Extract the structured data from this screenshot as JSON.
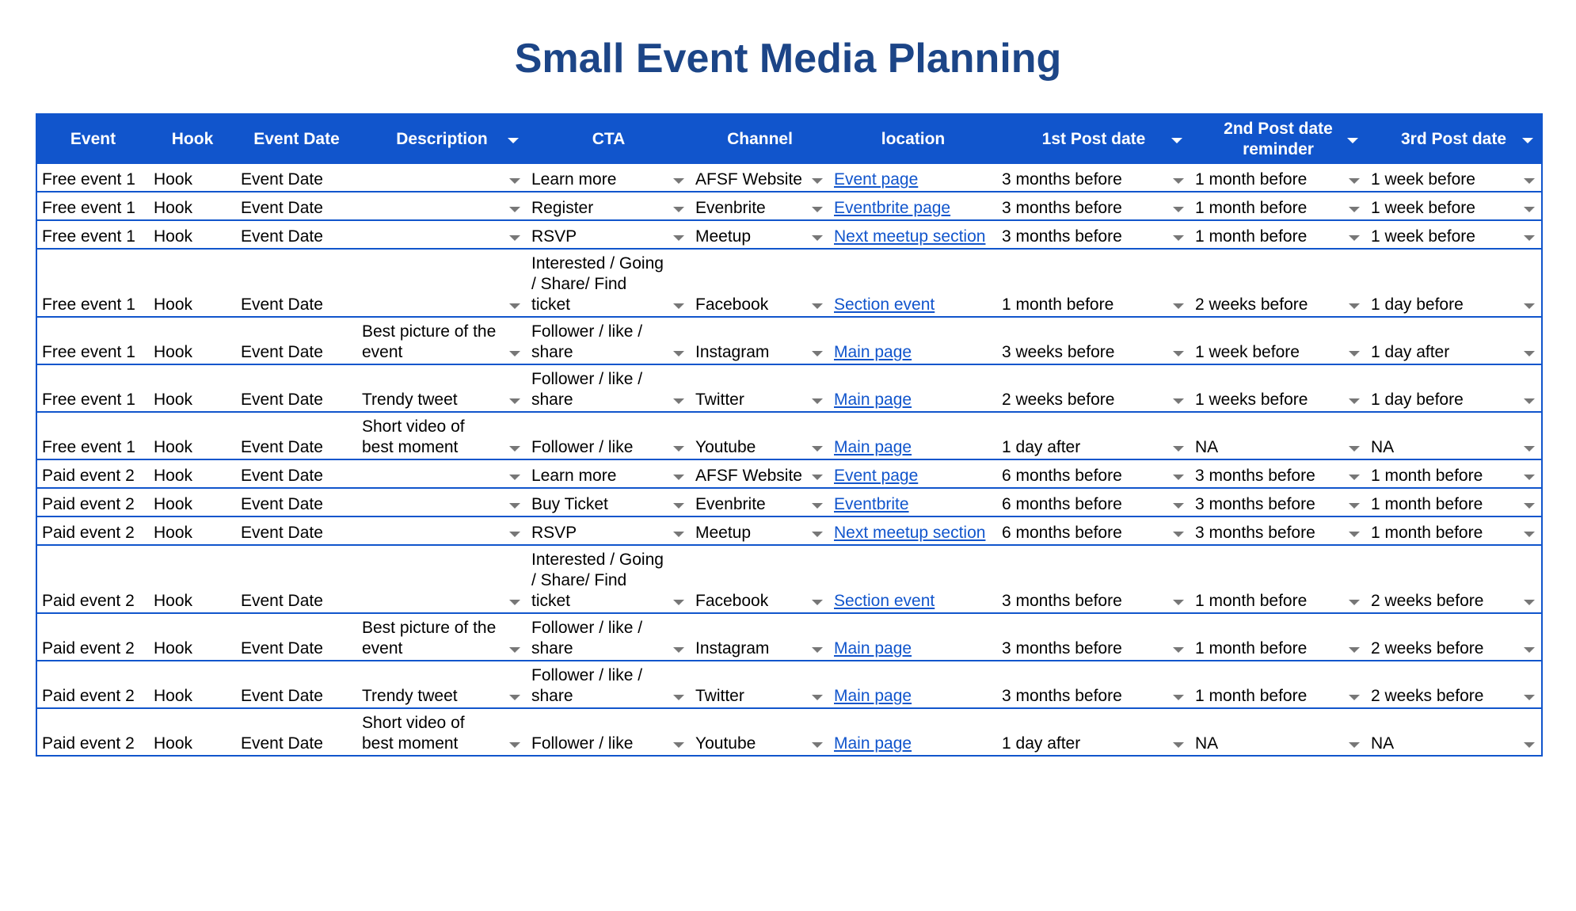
{
  "title": "Small Event Media Planning",
  "columns": [
    "Event",
    "Hook",
    "Event Date",
    "Description",
    "CTA",
    "Channel",
    "location",
    "1st Post date",
    "2nd Post date reminder",
    "3rd Post date"
  ],
  "rows": [
    {
      "event": "Free event 1",
      "hook": "Hook",
      "date": "Event Date",
      "description": "",
      "cta": "Learn more",
      "channel": "AFSF Website",
      "location": "Event page",
      "post1": "3 months before",
      "post2": "1 month before",
      "post3": "1 week before"
    },
    {
      "event": "Free event 1",
      "hook": "Hook",
      "date": "Event Date",
      "description": "",
      "cta": "Register",
      "channel": "Evenbrite",
      "location": "Eventbrite page",
      "post1": "3 months before",
      "post2": "1 month before",
      "post3": "1 week before"
    },
    {
      "event": "Free event 1",
      "hook": "Hook",
      "date": "Event Date",
      "description": "",
      "cta": "RSVP",
      "channel": "Meetup",
      "location": "Next meetup section",
      "post1": "3 months before",
      "post2": "1 month before",
      "post3": "1 week before"
    },
    {
      "event": "Free event 1",
      "hook": "Hook",
      "date": "Event Date",
      "description": "",
      "cta": "Interested / Going / Share/ Find ticket",
      "channel": "Facebook",
      "location": "Section event",
      "post1": "1 month before",
      "post2": "2 weeks before",
      "post3": "1 day before"
    },
    {
      "event": "Free event 1",
      "hook": "Hook",
      "date": "Event Date",
      "description": "Best picture of the event",
      "cta": "Follower / like / share",
      "channel": "Instagram",
      "location": "Main page",
      "post1": "3 weeks before",
      "post2": "1 week before",
      "post3": "1 day after"
    },
    {
      "event": "Free event 1",
      "hook": "Hook",
      "date": "Event Date",
      "description": "Trendy tweet",
      "cta": "Follower / like / share",
      "channel": "Twitter",
      "location": "Main page",
      "post1": "2 weeks before",
      "post2": "1 weeks before",
      "post3": "1 day before"
    },
    {
      "event": "Free event 1",
      "hook": "Hook",
      "date": "Event Date",
      "description": "Short video of best moment",
      "cta": "Follower / like",
      "channel": "Youtube",
      "location": "Main page",
      "post1": "1 day after",
      "post2": "NA",
      "post3": "NA"
    },
    {
      "event": "Paid event 2",
      "hook": "Hook",
      "date": "Event Date",
      "description": "",
      "cta": "Learn more",
      "channel": "AFSF Website",
      "location": "Event page",
      "post1": "6 months before",
      "post2": "3 months before",
      "post3": "1 month before"
    },
    {
      "event": "Paid event 2",
      "hook": "Hook",
      "date": "Event Date",
      "description": "",
      "cta": "Buy Ticket",
      "channel": "Evenbrite",
      "location": "Eventbrite",
      "post1": "6 months before",
      "post2": "3 months before",
      "post3": "1 month before"
    },
    {
      "event": "Paid event 2",
      "hook": "Hook",
      "date": "Event Date",
      "description": "",
      "cta": "RSVP",
      "channel": "Meetup",
      "location": "Next meetup section",
      "post1": "6 months before",
      "post2": "3 months before",
      "post3": "1 month before"
    },
    {
      "event": "Paid event 2",
      "hook": "Hook",
      "date": "Event Date",
      "description": "",
      "cta": "Interested / Going / Share/ Find ticket",
      "channel": "Facebook",
      "location": "Section event",
      "post1": "3 months before",
      "post2": "1 month before",
      "post3": "2 weeks before"
    },
    {
      "event": "Paid event 2",
      "hook": "Hook",
      "date": "Event Date",
      "description": "Best picture of the event",
      "cta": "Follower / like / share",
      "channel": "Instagram",
      "location": "Main page",
      "post1": "3 months before",
      "post2": "1 month before",
      "post3": "2 weeks before"
    },
    {
      "event": "Paid event 2",
      "hook": "Hook",
      "date": "Event Date",
      "description": "Trendy tweet",
      "cta": "Follower / like / share",
      "channel": "Twitter",
      "location": "Main page",
      "post1": "3 months before",
      "post2": "1 month before",
      "post3": "2 weeks before"
    },
    {
      "event": "Paid event 2",
      "hook": "Hook",
      "date": "Event Date",
      "description": "Short video of best moment",
      "cta": "Follower / like",
      "channel": "Youtube",
      "location": "Main page",
      "post1": "1 day after",
      "post2": "NA",
      "post3": "NA"
    }
  ],
  "colors": {
    "header_bg": "#1155cc",
    "title": "#1c4587",
    "link": "#1155cc",
    "border": "#1155cc"
  },
  "icons": {
    "dropdown": "dropdown-arrow-icon"
  }
}
